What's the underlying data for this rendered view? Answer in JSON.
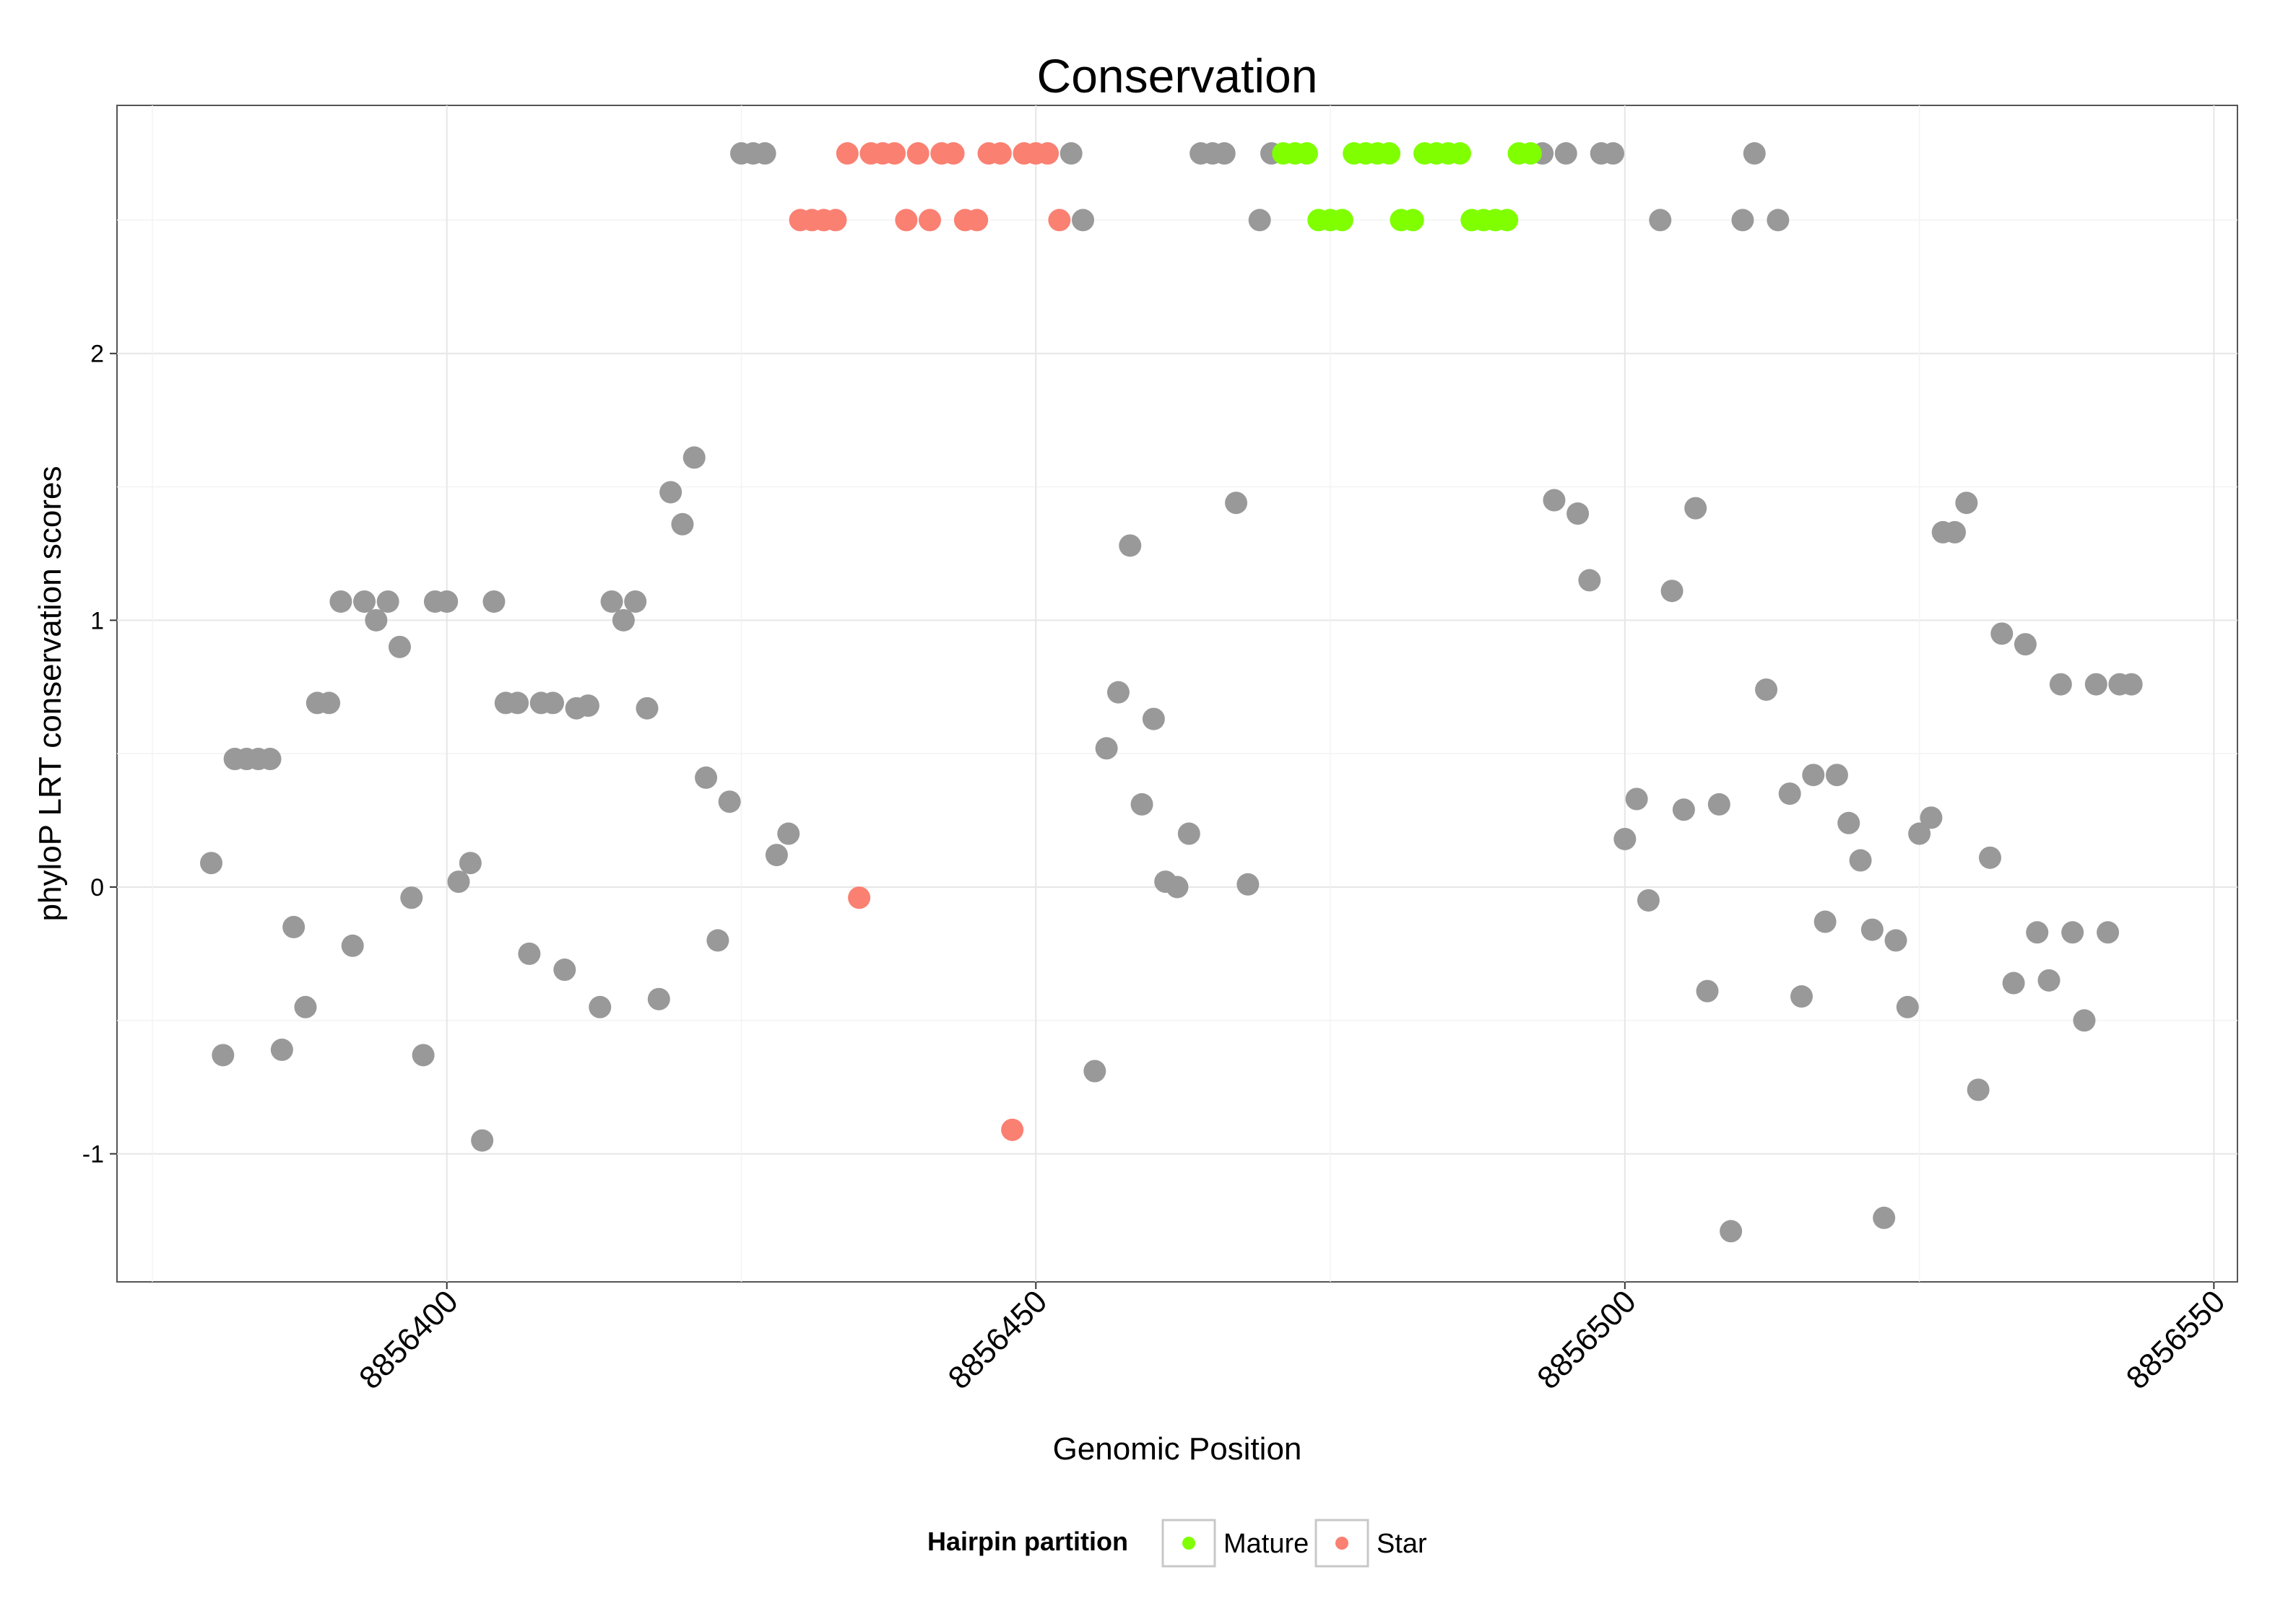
{
  "chart_data": {
    "type": "scatter",
    "title": "Conservation",
    "xlabel": "Genomic Position",
    "ylabel": "phyloP LRT conservation scores",
    "xlim": [
      8856372,
      8856552
    ],
    "ylim": [
      -1.48,
      2.93
    ],
    "x_ticks": [
      8856400,
      8856450,
      8856500,
      8856550
    ],
    "x_tick_labels": [
      "8856400",
      "8856450",
      "8856500",
      "8856550"
    ],
    "y_ticks": [
      -1,
      0,
      1,
      2
    ],
    "y_tick_labels": [
      "-1",
      "0",
      "1",
      "2"
    ],
    "grid": true,
    "legend": {
      "title": "Hairpin partition",
      "placement": "bottom",
      "entries": [
        {
          "label": "Mature",
          "color": "#7FFF00"
        },
        {
          "label": "Star",
          "color": "#FA8072"
        }
      ]
    },
    "colors": {
      "Other": "#999999",
      "Mature": "#7FFF00",
      "Star": "#FA8072"
    },
    "series": [
      {
        "name": "Other",
        "points": [
          [
            8856380,
            0.09
          ],
          [
            8856381,
            -0.63
          ],
          [
            8856382,
            0.48
          ],
          [
            8856383,
            0.48
          ],
          [
            8856384,
            0.48
          ],
          [
            8856385,
            0.48
          ],
          [
            8856386,
            -0.61
          ],
          [
            8856387,
            -0.15
          ],
          [
            8856388,
            -0.45
          ],
          [
            8856389,
            0.69
          ],
          [
            8856390,
            0.69
          ],
          [
            8856391,
            1.07
          ],
          [
            8856392,
            -0.22
          ],
          [
            8856393,
            1.07
          ],
          [
            8856394,
            1.0
          ],
          [
            8856395,
            1.07
          ],
          [
            8856396,
            0.9
          ],
          [
            8856397,
            -0.04
          ],
          [
            8856398,
            -0.63
          ],
          [
            8856399,
            1.07
          ],
          [
            8856400,
            1.07
          ],
          [
            8856401,
            0.02
          ],
          [
            8856402,
            0.09
          ],
          [
            8856403,
            -0.95
          ],
          [
            8856404,
            1.07
          ],
          [
            8856405,
            0.69
          ],
          [
            8856406,
            0.69
          ],
          [
            8856407,
            -0.25
          ],
          [
            8856408,
            0.69
          ],
          [
            8856409,
            0.69
          ],
          [
            8856410,
            -0.31
          ],
          [
            8856411,
            0.67
          ],
          [
            8856412,
            0.68
          ],
          [
            8856413,
            -0.45
          ],
          [
            8856414,
            1.07
          ],
          [
            8856415,
            1.0
          ],
          [
            8856416,
            1.07
          ],
          [
            8856417,
            0.67
          ],
          [
            8856418,
            -0.42
          ],
          [
            8856419,
            1.48
          ],
          [
            8856420,
            1.36
          ],
          [
            8856421,
            1.61
          ],
          [
            8856422,
            0.41
          ],
          [
            8856423,
            -0.2
          ],
          [
            8856424,
            0.32
          ],
          [
            8856425,
            2.75
          ],
          [
            8856426,
            2.75
          ],
          [
            8856427,
            2.75
          ],
          [
            8856428,
            0.12
          ],
          [
            8856429,
            0.2
          ],
          [
            8856453,
            2.75
          ],
          [
            8856454,
            2.5
          ],
          [
            8856455,
            -0.69
          ],
          [
            8856456,
            0.52
          ],
          [
            8856457,
            0.73
          ],
          [
            8856458,
            1.28
          ],
          [
            8856459,
            0.31
          ],
          [
            8856460,
            0.63
          ],
          [
            8856461,
            0.02
          ],
          [
            8856462,
            0.0
          ],
          [
            8856463,
            0.2
          ],
          [
            8856464,
            2.75
          ],
          [
            8856465,
            2.75
          ],
          [
            8856466,
            2.75
          ],
          [
            8856467,
            1.44
          ],
          [
            8856468,
            0.01
          ],
          [
            8856469,
            2.5
          ],
          [
            8856470,
            2.75
          ],
          [
            8856493,
            2.75
          ],
          [
            8856494,
            1.45
          ],
          [
            8856495,
            2.75
          ],
          [
            8856496,
            1.4
          ],
          [
            8856497,
            1.15
          ],
          [
            8856498,
            2.75
          ],
          [
            8856499,
            2.75
          ],
          [
            8856500,
            0.18
          ],
          [
            8856501,
            0.33
          ],
          [
            8856502,
            -0.05
          ],
          [
            8856503,
            2.5
          ],
          [
            8856504,
            1.11
          ],
          [
            8856505,
            0.29
          ],
          [
            8856506,
            1.42
          ],
          [
            8856507,
            -0.39
          ],
          [
            8856508,
            0.31
          ],
          [
            8856509,
            -1.29
          ],
          [
            8856510,
            2.5
          ],
          [
            8856511,
            2.75
          ],
          [
            8856512,
            0.74
          ],
          [
            8856513,
            2.5
          ],
          [
            8856514,
            0.35
          ],
          [
            8856515,
            -0.41
          ],
          [
            8856516,
            0.42
          ],
          [
            8856517,
            -0.13
          ],
          [
            8856518,
            0.42
          ],
          [
            8856519,
            0.24
          ],
          [
            8856520,
            0.1
          ],
          [
            8856521,
            -0.16
          ],
          [
            8856522,
            -1.24
          ],
          [
            8856523,
            -0.2
          ],
          [
            8856524,
            -0.45
          ],
          [
            8856525,
            0.2
          ],
          [
            8856526,
            0.26
          ],
          [
            8856527,
            1.33
          ],
          [
            8856528,
            1.33
          ],
          [
            8856529,
            1.44
          ],
          [
            8856530,
            -0.76
          ],
          [
            8856531,
            0.11
          ],
          [
            8856532,
            0.95
          ],
          [
            8856533,
            -0.36
          ],
          [
            8856534,
            0.91
          ],
          [
            8856535,
            -0.17
          ],
          [
            8856536,
            -0.35
          ],
          [
            8856537,
            0.76
          ],
          [
            8856538,
            -0.17
          ],
          [
            8856539,
            -0.5
          ],
          [
            8856540,
            0.76
          ],
          [
            8856541,
            -0.17
          ],
          [
            8856542,
            0.76
          ],
          [
            8856543,
            0.76
          ]
        ]
      },
      {
        "name": "Star",
        "points": [
          [
            8856430,
            2.5
          ],
          [
            8856431,
            2.5
          ],
          [
            8856432,
            2.5
          ],
          [
            8856433,
            2.5
          ],
          [
            8856434,
            2.75
          ],
          [
            8856435,
            -0.04
          ],
          [
            8856436,
            2.75
          ],
          [
            8856437,
            2.75
          ],
          [
            8856438,
            2.75
          ],
          [
            8856439,
            2.5
          ],
          [
            8856440,
            2.75
          ],
          [
            8856441,
            2.5
          ],
          [
            8856442,
            2.75
          ],
          [
            8856443,
            2.75
          ],
          [
            8856444,
            2.5
          ],
          [
            8856445,
            2.5
          ],
          [
            8856446,
            2.75
          ],
          [
            8856447,
            2.75
          ],
          [
            8856448,
            -0.91
          ],
          [
            8856449,
            2.75
          ],
          [
            8856450,
            2.75
          ],
          [
            8856451,
            2.75
          ],
          [
            8856452,
            2.5
          ]
        ]
      },
      {
        "name": "Mature",
        "points": [
          [
            8856471,
            2.75
          ],
          [
            8856472,
            2.75
          ],
          [
            8856473,
            2.75
          ],
          [
            8856474,
            2.5
          ],
          [
            8856475,
            2.5
          ],
          [
            8856476,
            2.5
          ],
          [
            8856477,
            2.75
          ],
          [
            8856478,
            2.75
          ],
          [
            8856479,
            2.75
          ],
          [
            8856480,
            2.75
          ],
          [
            8856481,
            2.5
          ],
          [
            8856482,
            2.5
          ],
          [
            8856483,
            2.75
          ],
          [
            8856484,
            2.75
          ],
          [
            8856485,
            2.75
          ],
          [
            8856486,
            2.75
          ],
          [
            8856487,
            2.5
          ],
          [
            8856488,
            2.5
          ],
          [
            8856489,
            2.5
          ],
          [
            8856490,
            2.5
          ],
          [
            8856491,
            2.75
          ],
          [
            8856492,
            2.75
          ]
        ]
      }
    ]
  }
}
